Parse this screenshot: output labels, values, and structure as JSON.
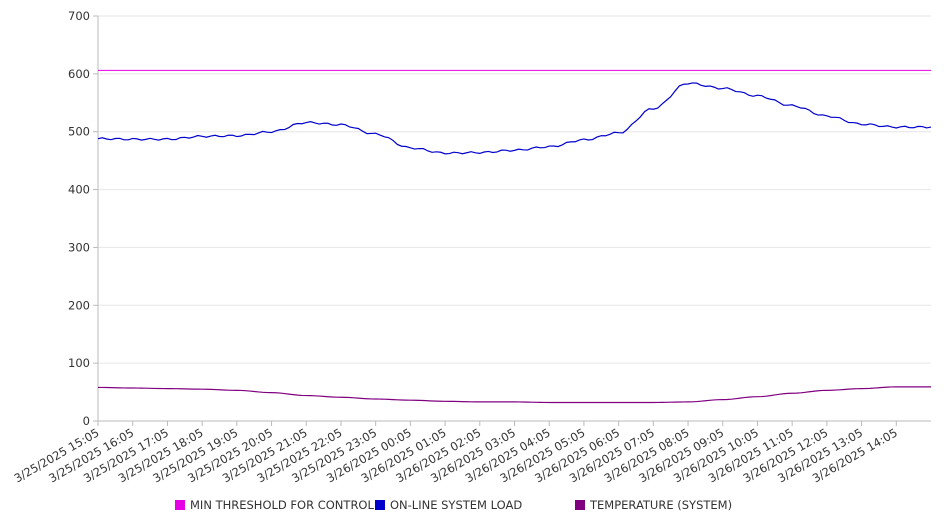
{
  "chart_data": {
    "type": "line",
    "title": "",
    "xlabel": "",
    "ylabel": "",
    "ylim": [
      0,
      700
    ],
    "yticks": [
      "0",
      "100",
      "200",
      "300",
      "400",
      "500",
      "600",
      "700"
    ],
    "grid": true,
    "legend_position": "bottom",
    "categories": [
      "3/25/2025 15:05",
      "3/25/2025 16:05",
      "3/25/2025 17:05",
      "3/25/2025 18:05",
      "3/25/2025 19:05",
      "3/25/2025 20:05",
      "3/25/2025 21:05",
      "3/25/2025 22:05",
      "3/25/2025 23:05",
      "3/26/2025 00:05",
      "3/26/2025 01:05",
      "3/26/2025 02:05",
      "3/26/2025 03:05",
      "3/26/2025 04:05",
      "3/26/2025 05:05",
      "3/26/2025 06:05",
      "3/26/2025 07:05",
      "3/26/2025 08:05",
      "3/26/2025 09:05",
      "3/26/2025 10:05",
      "3/26/2025 11:05",
      "3/26/2025 12:05",
      "3/26/2025 13:05",
      "3/26/2025 14:05"
    ],
    "series": [
      {
        "name": "MIN THRESHOLD FOR CONTROL",
        "color": "#e600e6",
        "values": [
          606,
          606,
          606,
          606,
          606,
          606,
          606,
          606,
          606,
          606,
          606,
          606,
          606,
          606,
          606,
          606,
          606,
          606,
          606,
          606,
          606,
          606,
          606,
          606
        ]
      },
      {
        "name": "ON-LINE SYSTEM LOAD",
        "color": "#0000cc",
        "values": [
          488,
          487,
          487,
          492,
          493,
          500,
          516,
          512,
          496,
          472,
          463,
          464,
          468,
          474,
          486,
          498,
          540,
          584,
          575,
          562,
          545,
          527,
          513,
          508
        ]
      },
      {
        "name": "TEMPERATURE (SYSTEM)",
        "color": "#800080",
        "values": [
          58,
          57,
          56,
          55,
          53,
          49,
          44,
          41,
          38,
          36,
          34,
          33,
          33,
          32,
          32,
          32,
          32,
          33,
          37,
          42,
          48,
          53,
          56,
          59
        ]
      }
    ]
  }
}
